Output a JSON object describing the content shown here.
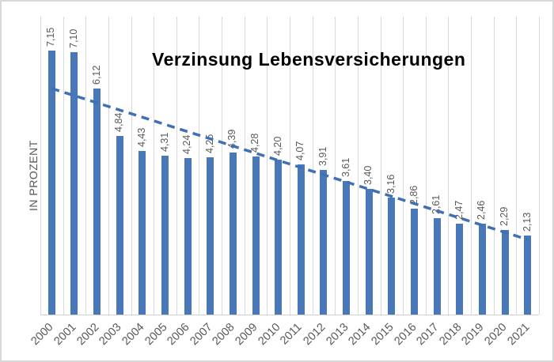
{
  "chart": {
    "title": "Verzinsung Lebensversicherungen",
    "y_axis_title": "IN PROZENT"
  },
  "colors": {
    "bar": "#4878b8",
    "trendline": "#4070b4",
    "gridline": "#d9d9d9",
    "value_label": "#595959",
    "axis_label": "#595959",
    "title": "#000000",
    "background": "#ffffff",
    "border": "#d8d8d8"
  },
  "chart_data": {
    "type": "bar",
    "title": "Verzinsung Lebensversicherungen",
    "xlabel": "",
    "ylabel": "IN PROZENT",
    "categories": [
      "2000",
      "2001",
      "2002",
      "2003",
      "2004",
      "2005",
      "2006",
      "2007",
      "2008",
      "2009",
      "2010",
      "2011",
      "2012",
      "2013",
      "2014",
      "2015",
      "2016",
      "2017",
      "2018",
      "2019",
      "2020",
      "2021"
    ],
    "values": [
      7.15,
      7.1,
      6.12,
      4.84,
      4.43,
      4.31,
      4.24,
      4.25,
      4.39,
      4.28,
      4.2,
      4.07,
      3.91,
      3.61,
      3.4,
      3.16,
      2.86,
      2.61,
      2.47,
      2.46,
      2.29,
      2.13
    ],
    "value_labels": [
      "7,15",
      "7,10",
      "6,12",
      "4,84",
      "4,43",
      "4,31",
      "4,24",
      "4,25",
      "4,39",
      "4,28",
      "4,20",
      "4,07",
      "3,91",
      "3,61",
      "3,40",
      "3,16",
      "2,86",
      "2,61",
      "2,47",
      "2,46",
      "2,29",
      "2,13"
    ],
    "ylim": [
      0,
      8.3
    ],
    "grid": "vertical",
    "legend": "none",
    "trendline": {
      "style": "dashed",
      "start_value": 6.12,
      "end_value": 2.03
    }
  }
}
